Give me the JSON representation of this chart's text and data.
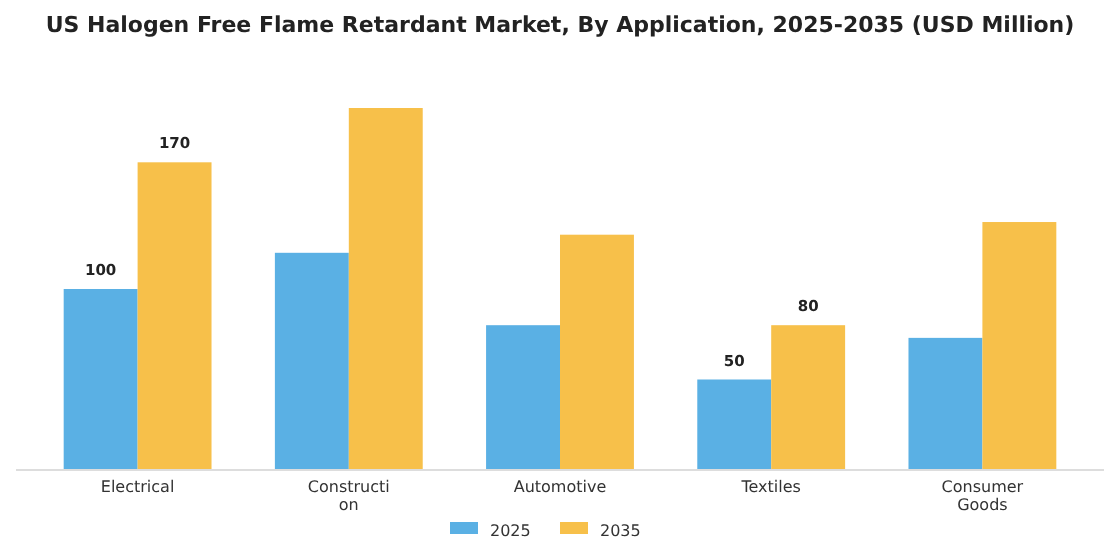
{
  "chart_data": {
    "type": "bar",
    "title": "US Halogen Free Flame Retardant Market, By Application, 2025-2035 (USD Million)",
    "categories": [
      "Electrical",
      "Construction",
      "Automotive",
      "Textiles",
      "Consumer Goods"
    ],
    "legend": "bottom",
    "series": [
      {
        "name": "2025",
        "color": "#5ab0e4",
        "values": [
          100,
          120,
          80,
          50,
          73
        ],
        "value_labels": [
          "100",
          null,
          null,
          "50",
          null
        ]
      },
      {
        "name": "2035",
        "color": "#f7c04a",
        "values": [
          170,
          200,
          130,
          80,
          137
        ],
        "value_labels": [
          "170",
          null,
          null,
          "80",
          null
        ]
      }
    ]
  }
}
